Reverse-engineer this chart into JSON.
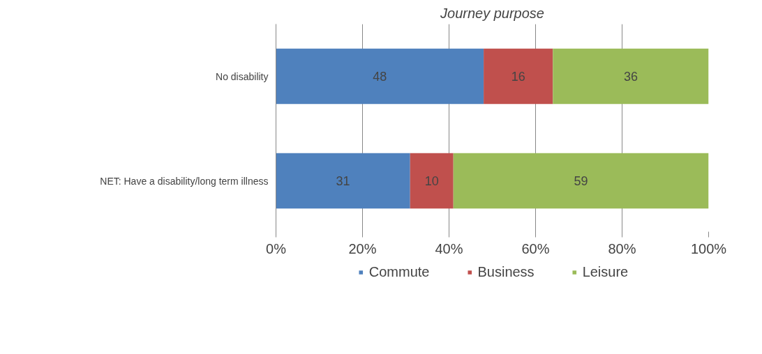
{
  "chart_data": {
    "type": "bar",
    "orientation": "horizontal",
    "stacked": true,
    "title": "Journey purpose",
    "categories": [
      "No disability",
      "NET: Have a disability/long term illness"
    ],
    "series": [
      {
        "name": "Commute",
        "color": "#4f81bd",
        "values": [
          48,
          31
        ]
      },
      {
        "name": "Business",
        "color": "#c0504d",
        "values": [
          16,
          10
        ]
      },
      {
        "name": "Leisure",
        "color": "#9bbb59",
        "values": [
          36,
          59
        ]
      }
    ],
    "xlim": [
      0,
      100
    ],
    "xticks": [
      {
        "value": 0,
        "label": "0%"
      },
      {
        "value": 20,
        "label": "20%"
      },
      {
        "value": 40,
        "label": "40%"
      },
      {
        "value": 60,
        "label": "60%"
      },
      {
        "value": 80,
        "label": "80%"
      },
      {
        "value": 100,
        "label": "100%"
      }
    ],
    "grid": "x",
    "legend": "bottom",
    "data_labels": true
  }
}
